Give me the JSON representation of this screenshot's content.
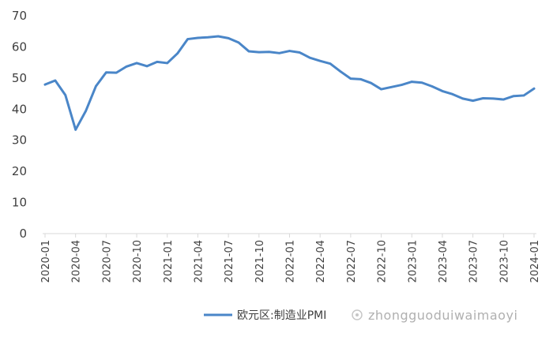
{
  "chart_data": {
    "type": "line",
    "title": "",
    "xlabel": "",
    "ylabel": "",
    "ylim": [
      0,
      70
    ],
    "yticks": [
      0,
      10,
      20,
      30,
      40,
      50,
      60,
      70
    ],
    "grid": false,
    "legend_position": "bottom",
    "x": [
      "2020-01",
      "2020-02",
      "2020-03",
      "2020-04",
      "2020-05",
      "2020-06",
      "2020-07",
      "2020-08",
      "2020-09",
      "2020-10",
      "2020-11",
      "2020-12",
      "2021-01",
      "2021-02",
      "2021-03",
      "2021-04",
      "2021-05",
      "2021-06",
      "2021-07",
      "2021-08",
      "2021-09",
      "2021-10",
      "2021-11",
      "2021-12",
      "2022-01",
      "2022-02",
      "2022-03",
      "2022-04",
      "2022-05",
      "2022-06",
      "2022-07",
      "2022-08",
      "2022-09",
      "2022-10",
      "2022-11",
      "2022-12",
      "2023-01",
      "2023-02",
      "2023-03",
      "2023-04",
      "2023-05",
      "2023-06",
      "2023-07",
      "2023-08",
      "2023-09",
      "2023-10",
      "2023-11",
      "2023-12",
      "2024-01"
    ],
    "xtick_labels": [
      "2020-01",
      "2020-04",
      "2020-07",
      "2020-10",
      "2021-01",
      "2021-04",
      "2021-07",
      "2021-10",
      "2022-01",
      "2022-04",
      "2022-07",
      "2022-10",
      "2023-01",
      "2023-04",
      "2023-07",
      "2023-10",
      "2024-01"
    ],
    "series": [
      {
        "name": "欧元区:制造业PMI",
        "color": "#4a86c8",
        "values": [
          47.9,
          49.2,
          44.5,
          33.4,
          39.4,
          47.4,
          51.8,
          51.7,
          53.7,
          54.8,
          53.8,
          55.2,
          54.8,
          57.9,
          62.5,
          62.9,
          63.1,
          63.4,
          62.8,
          61.4,
          58.6,
          58.3,
          58.4,
          58.0,
          58.7,
          58.2,
          56.5,
          55.5,
          54.6,
          52.1,
          49.8,
          49.6,
          48.4,
          46.4,
          47.1,
          47.8,
          48.8,
          48.5,
          47.3,
          45.8,
          44.8,
          43.4,
          42.7,
          43.5,
          43.4,
          43.1,
          44.2,
          44.4,
          46.6
        ]
      }
    ]
  },
  "watermark": {
    "text": "zhongguoduiwaimaoyi"
  }
}
